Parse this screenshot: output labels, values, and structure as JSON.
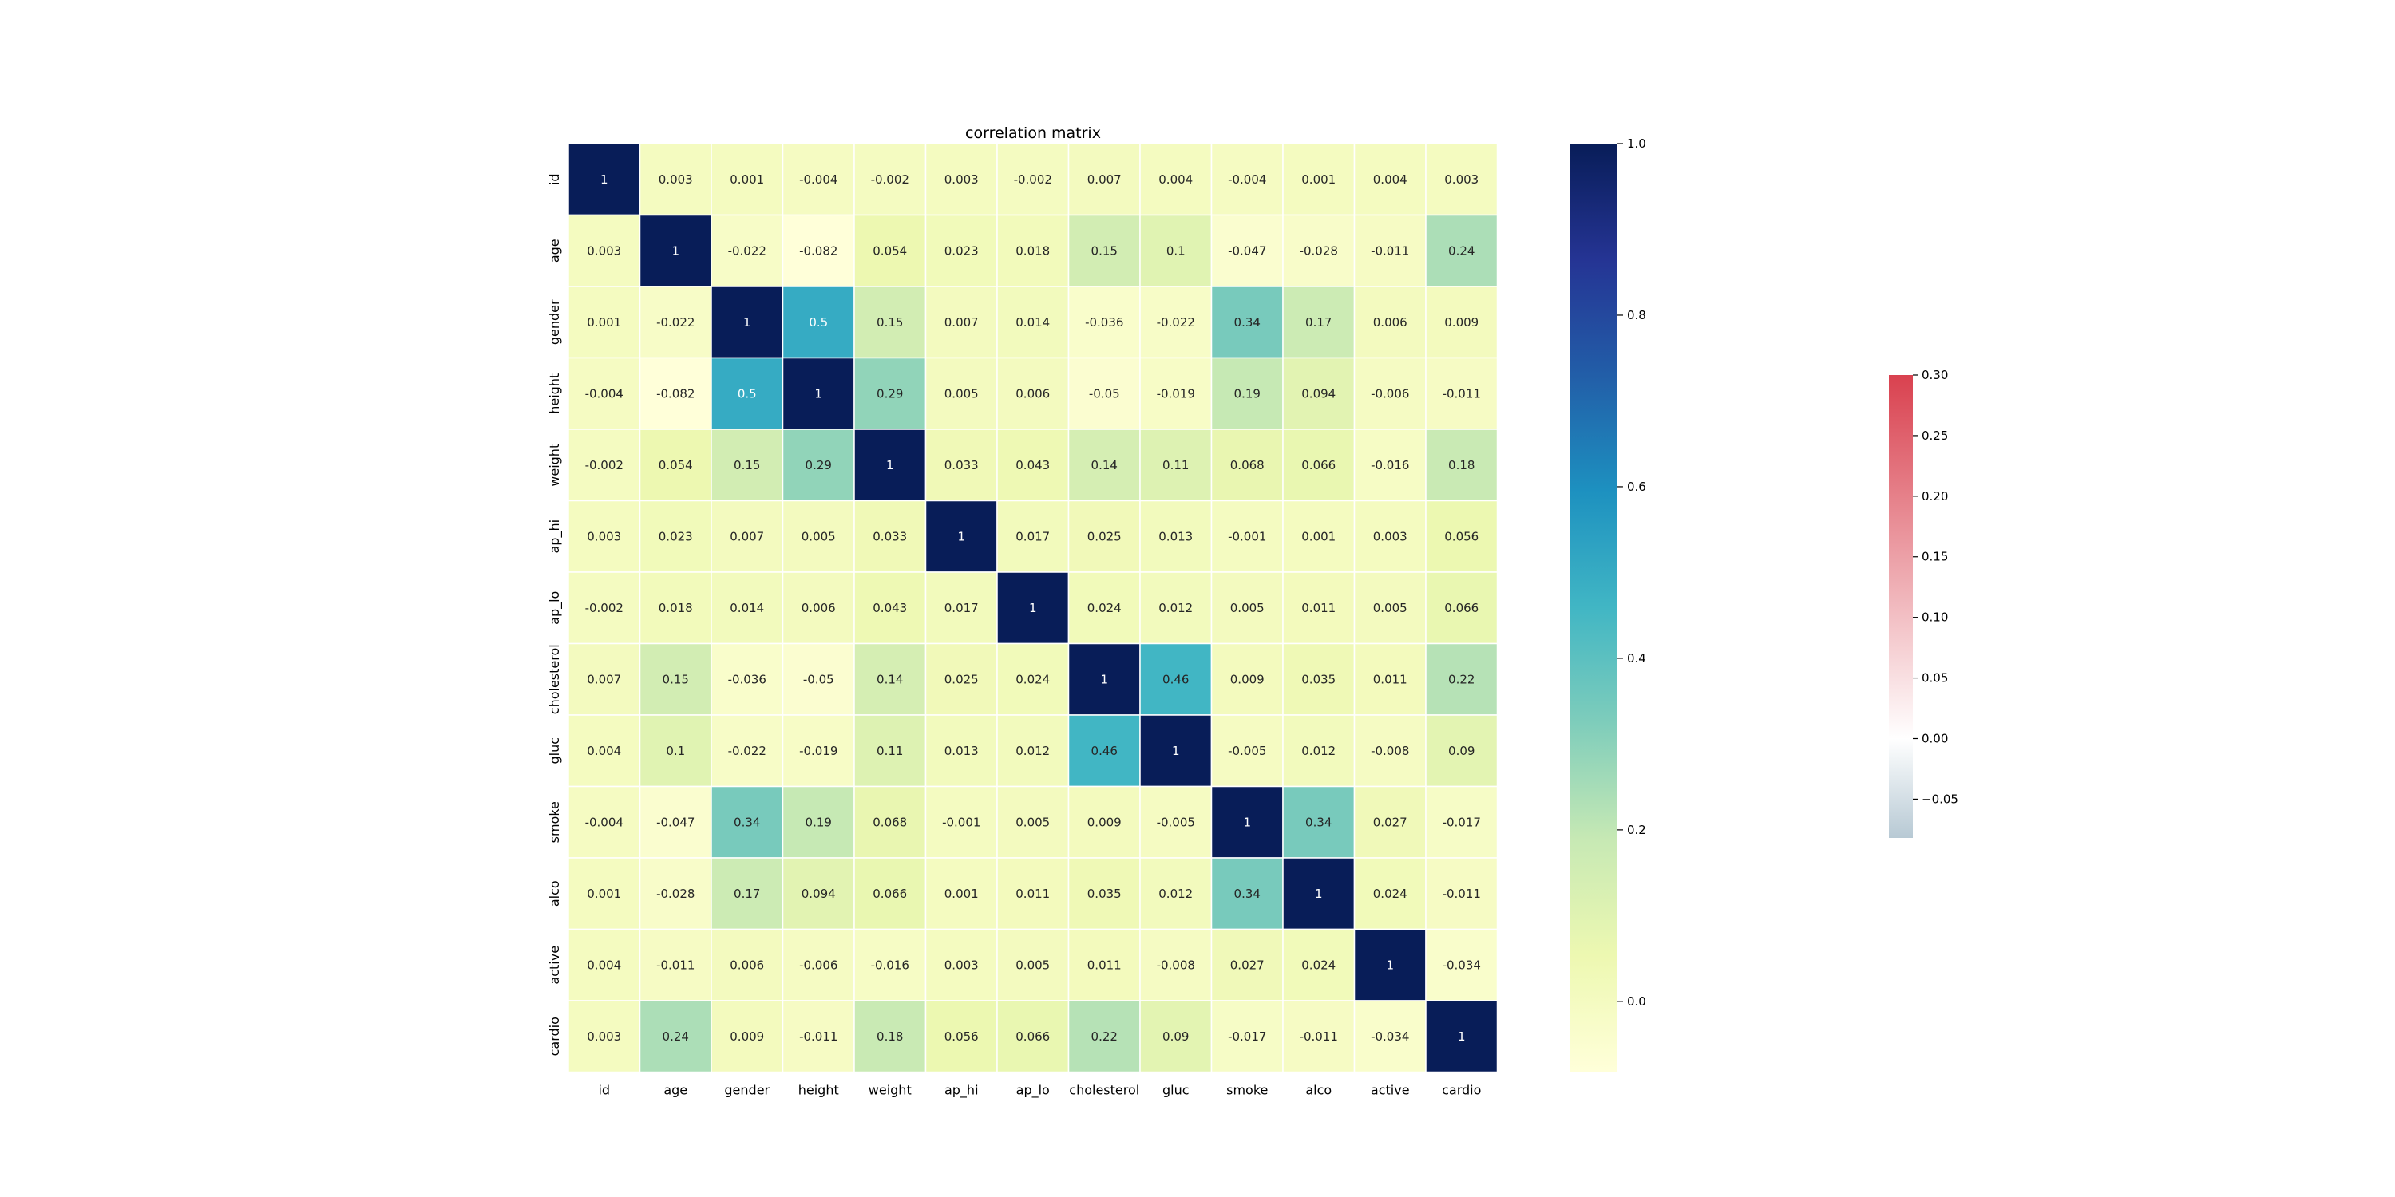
{
  "chart_data": [
    {
      "type": "heatmap",
      "title": "correlation matrix",
      "xlabel": "",
      "ylabel": "",
      "variables": [
        "id",
        "age",
        "gender",
        "height",
        "weight",
        "ap_hi",
        "ap_lo",
        "cholesterol",
        "gluc",
        "smoke",
        "alco",
        "active",
        "cardio"
      ],
      "values": [
        [
          "1",
          "0.003",
          "0.001",
          "-0.004",
          "-0.002",
          "0.003",
          "-0.002",
          "0.007",
          "0.004",
          "-0.004",
          "0.001",
          "0.004",
          "0.003"
        ],
        [
          "0.003",
          "1",
          "-0.022",
          "-0.082",
          "0.054",
          "0.023",
          "0.018",
          "0.15",
          "0.1",
          "-0.047",
          "-0.028",
          "-0.011",
          "0.24"
        ],
        [
          "0.001",
          "-0.022",
          "1",
          "0.5",
          "0.15",
          "0.007",
          "0.014",
          "-0.036",
          "-0.022",
          "0.34",
          "0.17",
          "0.006",
          "0.009"
        ],
        [
          "-0.004",
          "-0.082",
          "0.5",
          "1",
          "0.29",
          "0.005",
          "0.006",
          "-0.05",
          "-0.019",
          "0.19",
          "0.094",
          "-0.006",
          "-0.011"
        ],
        [
          "-0.002",
          "0.054",
          "0.15",
          "0.29",
          "1",
          "0.033",
          "0.043",
          "0.14",
          "0.11",
          "0.068",
          "0.066",
          "-0.016",
          "0.18"
        ],
        [
          "0.003",
          "0.023",
          "0.007",
          "0.005",
          "0.033",
          "1",
          "0.017",
          "0.025",
          "0.013",
          "-0.001",
          "0.001",
          "0.003",
          "0.056"
        ],
        [
          "-0.002",
          "0.018",
          "0.014",
          "0.006",
          "0.043",
          "0.017",
          "1",
          "0.024",
          "0.012",
          "0.005",
          "0.011",
          "0.005",
          "0.066"
        ],
        [
          "0.007",
          "0.15",
          "-0.036",
          "-0.05",
          "0.14",
          "0.025",
          "0.024",
          "1",
          "0.46",
          "0.009",
          "0.035",
          "0.011",
          "0.22"
        ],
        [
          "0.004",
          "0.1",
          "-0.022",
          "-0.019",
          "0.11",
          "0.013",
          "0.012",
          "0.46",
          "1",
          "-0.005",
          "0.012",
          "-0.008",
          "0.09"
        ],
        [
          "-0.004",
          "-0.047",
          "0.34",
          "0.19",
          "0.068",
          "-0.001",
          "0.005",
          "0.009",
          "-0.005",
          "1",
          "0.34",
          "0.027",
          "-0.017"
        ],
        [
          "0.001",
          "-0.028",
          "0.17",
          "0.094",
          "0.066",
          "0.001",
          "0.011",
          "0.035",
          "0.012",
          "0.34",
          "1",
          "0.024",
          "-0.011"
        ],
        [
          "0.004",
          "-0.011",
          "0.006",
          "-0.006",
          "-0.016",
          "0.003",
          "0.005",
          "0.011",
          "-0.008",
          "0.027",
          "0.024",
          "1",
          "-0.034"
        ],
        [
          "0.003",
          "0.24",
          "0.009",
          "-0.011",
          "0.18",
          "0.056",
          "0.066",
          "0.22",
          "0.09",
          "-0.017",
          "-0.011",
          "-0.034",
          "1"
        ]
      ],
      "colorscale": "YlGnBu",
      "colorbar": {
        "vmin": -0.082,
        "vmax": 1.0,
        "ticks": [
          "0.0",
          "0.2",
          "0.4",
          "0.6",
          "0.8",
          "1.0"
        ]
      },
      "grid": true,
      "legend": "colorbar right"
    },
    {
      "type": "colorbar",
      "colorscale": "diverging blue-white-red",
      "range": [
        -0.082,
        0.3
      ],
      "ticks": [
        "−0.05",
        "0.00",
        "0.05",
        "0.10",
        "0.15",
        "0.20",
        "0.25",
        "0.30"
      ],
      "placement": "far right"
    }
  ]
}
